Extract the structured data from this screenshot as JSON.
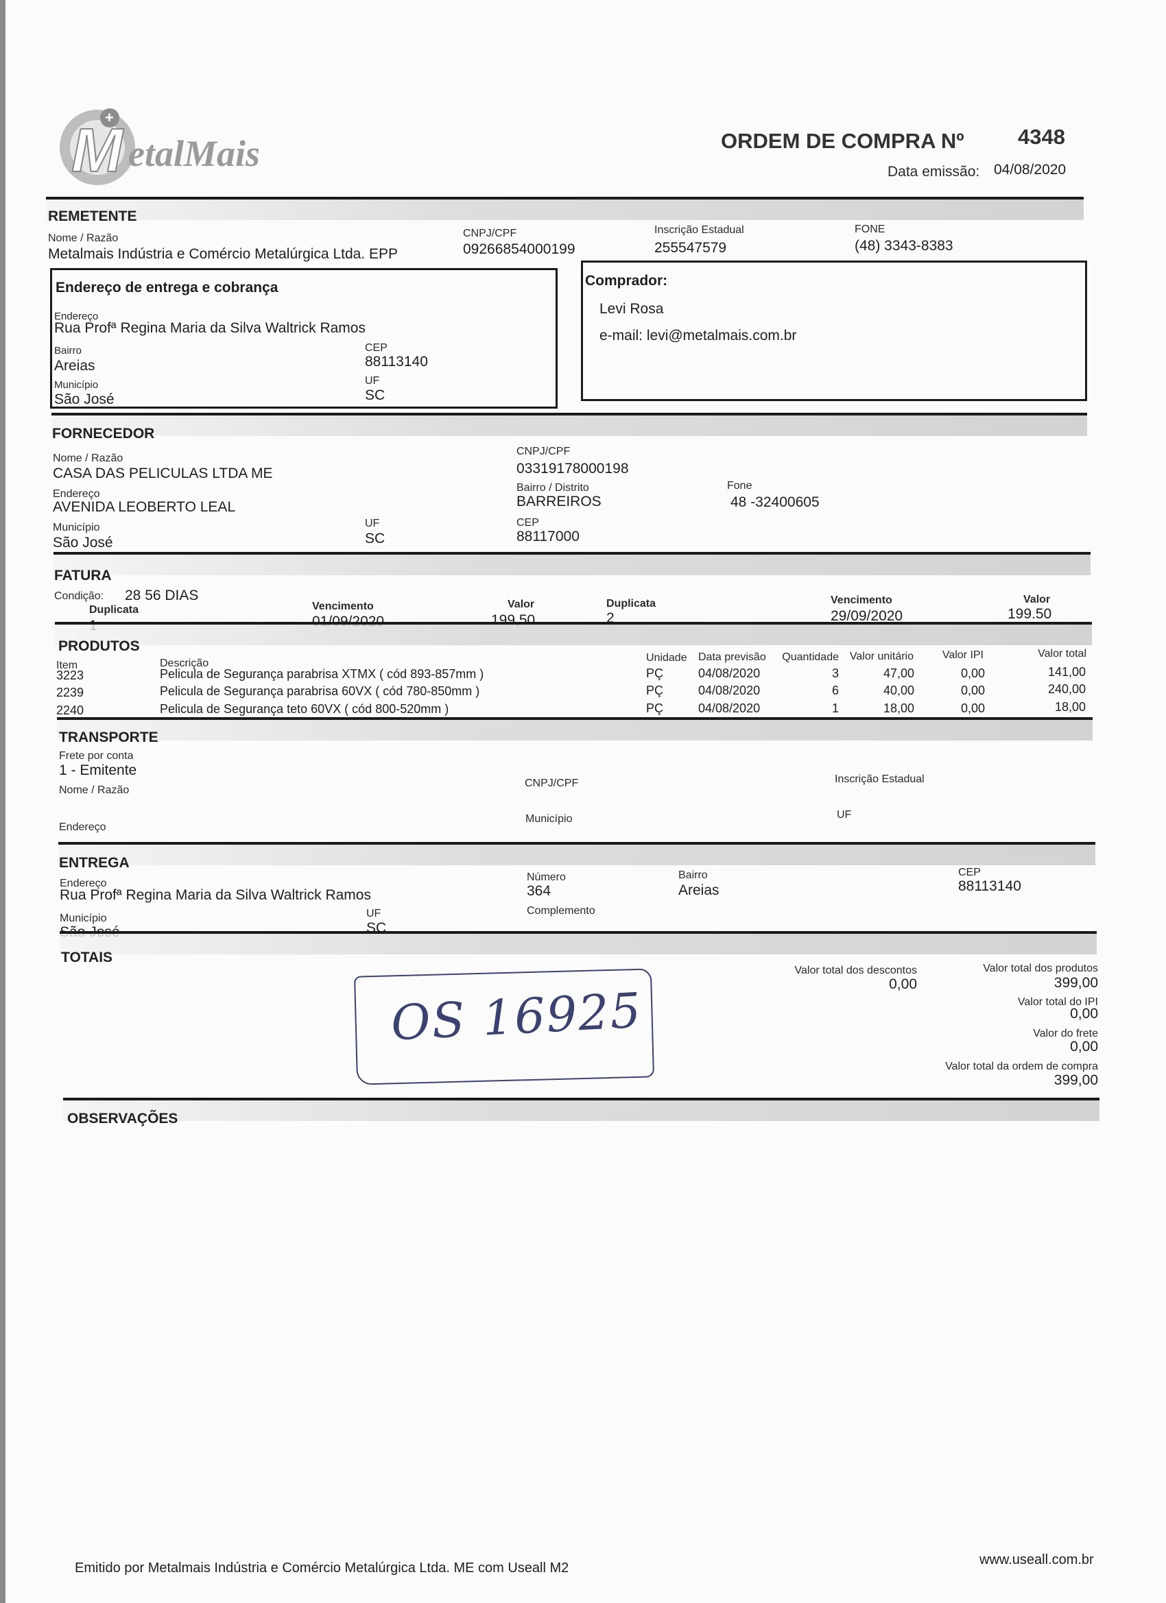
{
  "header": {
    "logo_text": "MetalMais",
    "title": "ORDEM DE COMPRA Nº",
    "number": "4348",
    "issue_date_label": "Data emissão:",
    "issue_date": "04/08/2020"
  },
  "remetente": {
    "section": "REMETENTE",
    "name_label": "Nome / Razão",
    "name": "Metalmais Indústria e Comércio Metalúrgica Ltda. EPP",
    "cnpj_label": "CNPJ/CPF",
    "cnpj": "09266854000199",
    "ie_label": "Inscrição Estadual",
    "ie": "255547579",
    "phone_label": "FONE",
    "phone": "(48) 3343-8383"
  },
  "billing": {
    "title": "Endereço de entrega e cobrança",
    "address_label": "Endereço",
    "address": "Rua Profª Regina Maria da Silva Waltrick Ramos",
    "district_label": "Bairro",
    "district": "Areias",
    "cep_label": "CEP",
    "cep": "88113140",
    "city_label": "Município",
    "city": "São José",
    "uf_label": "UF",
    "uf": "SC"
  },
  "buyer": {
    "title": "Comprador:",
    "name": "Levi Rosa",
    "email": "e-mail: levi@metalmais.com.br"
  },
  "fornecedor": {
    "section": "FORNECEDOR",
    "name_label": "Nome / Razão",
    "name": "CASA DAS PELICULAS LTDA ME",
    "cnpj_label": "CNPJ/CPF",
    "cnpj": "03319178000198",
    "address_label": "Endereço",
    "address": "AVENIDA LEOBERTO LEAL",
    "district_label": "Bairro / Distrito",
    "district": "BARREIROS",
    "phone_label": "Fone",
    "phone": "48 -32400605",
    "city_label": "Município",
    "city": "São José",
    "uf_label": "UF",
    "uf": "SC",
    "cep_label": "CEP",
    "cep": "88117000"
  },
  "fatura": {
    "section": "FATURA",
    "condition_label": "Condição:",
    "condition": "28 56 DIAS",
    "dup_label": "Duplicata",
    "due_label": "Vencimento",
    "value_label": "Valor",
    "installments": [
      {
        "dup": "1",
        "due": "01/09/2020",
        "value": "199,50"
      },
      {
        "dup": "2",
        "due": "29/09/2020",
        "value": "199.50"
      }
    ]
  },
  "produtos": {
    "section": "PRODUTOS",
    "columns": [
      "Item",
      "Descrição",
      "Unidade",
      "Data previsão",
      "Quantidade",
      "Valor unitário",
      "Valor IPI",
      "Valor total"
    ],
    "rows": [
      {
        "item": "3223",
        "desc": "Pelicula de Segurança parabrisa XTMX ( cód 893-857mm )",
        "unit": "PÇ",
        "date": "04/08/2020",
        "qty": "3",
        "unit_price": "47,00",
        "ipi": "0,00",
        "total": "141,00"
      },
      {
        "item": "2239",
        "desc": "Pelicula de Segurança parabrisa 60VX ( cód 780-850mm )",
        "unit": "PÇ",
        "date": "04/08/2020",
        "qty": "6",
        "unit_price": "40,00",
        "ipi": "0,00",
        "total": "240,00"
      },
      {
        "item": "2240",
        "desc": "Pelicula de Segurança teto 60VX ( cód 800-520mm )",
        "unit": "PÇ",
        "date": "04/08/2020",
        "qty": "1",
        "unit_price": "18,00",
        "ipi": "0,00",
        "total": "18,00"
      }
    ]
  },
  "transporte": {
    "section": "TRANSPORTE",
    "freight_label": "Frete por conta",
    "freight": "1 - Emitente",
    "name_label": "Nome / Razão",
    "cnpj_label": "CNPJ/CPF",
    "ie_label": "Inscrição Estadual",
    "address_label": "Endereço",
    "city_label": "Município",
    "uf_label": "UF"
  },
  "entrega": {
    "section": "ENTREGA",
    "address_label": "Endereço",
    "address": "Rua Profª Regina Maria da Silva Waltrick Ramos",
    "number_label": "Número",
    "number": "364",
    "district_label": "Bairro",
    "district": "Areias",
    "cep_label": "CEP",
    "cep": "88113140",
    "city_label": "Município",
    "city": "São José",
    "uf_label": "UF",
    "uf": "SC",
    "complement_label": "Complemento"
  },
  "totais": {
    "section": "TOTAIS",
    "discounts_label": "Valor total dos descontos",
    "discounts": "0,00",
    "products_label": "Valor total dos produtos",
    "products": "399,00",
    "ipi_label": "Valor total do IPI",
    "ipi": "0,00",
    "freight_label": "Valor do frete",
    "freight": "0,00",
    "order_label": "Valor total da ordem de compra",
    "order": "399,00"
  },
  "handwritten_note": "OS 16925",
  "observacoes": {
    "section": "OBSERVAÇÕES"
  },
  "footer": {
    "issued_by": "Emitido por Metalmais Indústria e Comércio Metalúrgica Ltda. ME com Useall M2",
    "website": "www.useall.com.br"
  }
}
